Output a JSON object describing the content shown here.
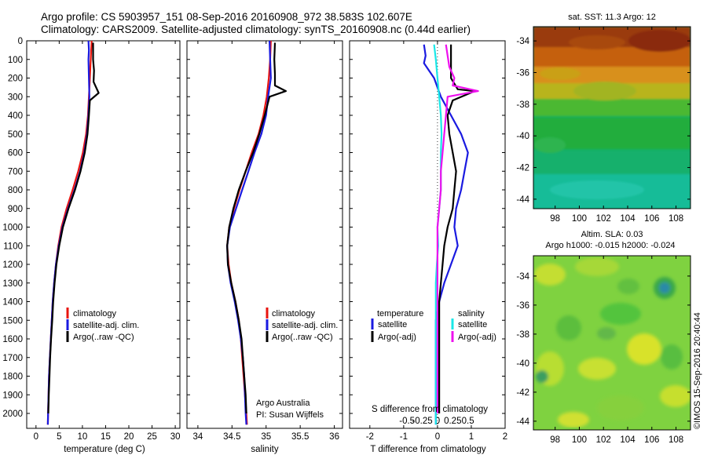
{
  "title_line1": "Argo profile: CS 5903957_151 08-Sep-2016 20160908_972 38.583S 102.607E",
  "title_line2": "Climatology: CARS2009. Satellite-adjusted climatology: synTS_20160908.nc (0.44d earlier)",
  "sst_title": "sat. SST: 11.3 Argo: 12",
  "sla_title1": "Altim. SLA: 0.03",
  "sla_title2": "Argo h1000: -0.015 h2000: -0.024",
  "credit_text": "Argo Australia",
  "pi_text": "PI: Susan Wijffels",
  "stamp": "©IMOS 15-Sep-2016 20:40:44",
  "colors": {
    "climatology": "#e8140f",
    "satellite": "#1a1ae0",
    "argo": "#000000",
    "sat_salinity": "#19e8e8",
    "argo_adj_salinity": "#ee10ee"
  },
  "chart_data": [
    {
      "type": "line",
      "name": "temperature",
      "xlabel": "temperature (deg C)",
      "ylabel": "",
      "xlim": [
        -2,
        31
      ],
      "ylim": [
        2080,
        0
      ],
      "xticks": [
        "0",
        "5",
        "10",
        "15",
        "20",
        "25",
        "30"
      ],
      "yticks": [
        "0",
        "100",
        "200",
        "300",
        "400",
        "500",
        "600",
        "700",
        "800",
        "900",
        "1000",
        "1100",
        "1200",
        "1300",
        "1400",
        "1500",
        "1600",
        "1700",
        "1800",
        "1900",
        "2000"
      ],
      "legend": [
        "climatology",
        "satellite-adj. clim.",
        "Argo(..raw -QC)"
      ],
      "series": [
        {
          "name": "climatology",
          "points": [
            [
              12.0,
              0
            ],
            [
              11.9,
              50
            ],
            [
              11.8,
              100
            ],
            [
              11.6,
              200
            ],
            [
              11.4,
              300
            ],
            [
              11.2,
              400
            ],
            [
              10.8,
              500
            ],
            [
              10.1,
              600
            ],
            [
              9.1,
              700
            ],
            [
              7.9,
              800
            ],
            [
              6.6,
              900
            ],
            [
              5.5,
              1000
            ],
            [
              4.8,
              1100
            ],
            [
              4.3,
              1200
            ],
            [
              3.9,
              1300
            ],
            [
              3.6,
              1400
            ],
            [
              3.4,
              1500
            ],
            [
              3.2,
              1600
            ],
            [
              3.0,
              1700
            ],
            [
              2.8,
              1800
            ],
            [
              2.7,
              1900
            ],
            [
              2.6,
              2000
            ],
            [
              2.55,
              2060
            ]
          ]
        },
        {
          "name": "satellite-adj. clim.",
          "points": [
            [
              11.3,
              0
            ],
            [
              11.4,
              50
            ],
            [
              11.3,
              100
            ],
            [
              11.4,
              200
            ],
            [
              11.5,
              300
            ],
            [
              11.3,
              400
            ],
            [
              11.0,
              500
            ],
            [
              10.4,
              600
            ],
            [
              9.5,
              700
            ],
            [
              8.3,
              800
            ],
            [
              6.9,
              900
            ],
            [
              5.7,
              1000
            ],
            [
              4.9,
              1100
            ],
            [
              4.3,
              1200
            ],
            [
              3.9,
              1300
            ],
            [
              3.6,
              1400
            ],
            [
              3.4,
              1500
            ],
            [
              3.2,
              1600
            ],
            [
              3.0,
              1700
            ],
            [
              2.8,
              1800
            ],
            [
              2.7,
              1900
            ],
            [
              2.6,
              2000
            ],
            [
              2.55,
              2060
            ]
          ]
        },
        {
          "name": "Argo(..raw -QC)",
          "points": [
            [
              12.3,
              10
            ],
            [
              12.3,
              100
            ],
            [
              12.5,
              160
            ],
            [
              12.4,
              220
            ],
            [
              13.5,
              280
            ],
            [
              11.6,
              320
            ],
            [
              11.4,
              400
            ],
            [
              11.1,
              500
            ],
            [
              10.5,
              600
            ],
            [
              9.6,
              700
            ],
            [
              8.4,
              800
            ],
            [
              7.0,
              900
            ],
            [
              5.8,
              1000
            ],
            [
              5.0,
              1100
            ],
            [
              4.4,
              1200
            ],
            [
              4.0,
              1300
            ],
            [
              3.7,
              1400
            ],
            [
              3.5,
              1500
            ],
            [
              3.25,
              1600
            ],
            [
              3.05,
              1700
            ],
            [
              2.9,
              1800
            ],
            [
              2.75,
              1900
            ],
            [
              2.65,
              2000
            ]
          ]
        }
      ]
    },
    {
      "type": "line",
      "name": "salinity",
      "xlabel": "salinity",
      "ylabel": "",
      "xlim": [
        33.84,
        36.12
      ],
      "ylim": [
        2080,
        0
      ],
      "xticks": [
        "34",
        "34.5",
        "35",
        "35.5",
        "36"
      ],
      "legend": [
        "climatology",
        "satellite-adj. clim.",
        "Argo(..raw -QC)"
      ],
      "series": [
        {
          "name": "climatology",
          "points": [
            [
              35.07,
              0
            ],
            [
              35.06,
              100
            ],
            [
              35.04,
              200
            ],
            [
              35.01,
              300
            ],
            [
              34.96,
              400
            ],
            [
              34.89,
              500
            ],
            [
              34.79,
              600
            ],
            [
              34.7,
              700
            ],
            [
              34.61,
              800
            ],
            [
              34.53,
              900
            ],
            [
              34.46,
              1000
            ],
            [
              34.43,
              1100
            ],
            [
              34.45,
              1200
            ],
            [
              34.49,
              1300
            ],
            [
              34.55,
              1400
            ],
            [
              34.6,
              1500
            ],
            [
              34.63,
              1600
            ],
            [
              34.65,
              1700
            ],
            [
              34.67,
              1800
            ],
            [
              34.69,
              1900
            ],
            [
              34.71,
              2000
            ],
            [
              34.72,
              2060
            ]
          ]
        },
        {
          "name": "satellite-adj. clim.",
          "points": [
            [
              35.05,
              0
            ],
            [
              35.06,
              100
            ],
            [
              35.07,
              200
            ],
            [
              35.03,
              300
            ],
            [
              35.0,
              400
            ],
            [
              34.93,
              500
            ],
            [
              34.83,
              600
            ],
            [
              34.74,
              700
            ],
            [
              34.65,
              800
            ],
            [
              34.56,
              900
            ],
            [
              34.47,
              1000
            ],
            [
              34.43,
              1100
            ],
            [
              34.44,
              1200
            ],
            [
              34.48,
              1300
            ],
            [
              34.54,
              1400
            ],
            [
              34.59,
              1500
            ],
            [
              34.63,
              1600
            ],
            [
              34.66,
              1700
            ],
            [
              34.68,
              1800
            ],
            [
              34.69,
              1900
            ],
            [
              34.7,
              2000
            ],
            [
              34.71,
              2060
            ]
          ]
        },
        {
          "name": "Argo(..raw -QC)",
          "points": [
            [
              35.13,
              10
            ],
            [
              35.12,
              100
            ],
            [
              35.13,
              180
            ],
            [
              35.13,
              240
            ],
            [
              35.29,
              270
            ],
            [
              35.05,
              300
            ],
            [
              34.98,
              400
            ],
            [
              34.9,
              500
            ],
            [
              34.81,
              600
            ],
            [
              34.7,
              700
            ],
            [
              34.6,
              800
            ],
            [
              34.52,
              900
            ],
            [
              34.46,
              1000
            ],
            [
              34.43,
              1100
            ],
            [
              34.44,
              1200
            ],
            [
              34.49,
              1300
            ],
            [
              34.55,
              1400
            ],
            [
              34.6,
              1500
            ],
            [
              34.64,
              1600
            ],
            [
              34.66,
              1700
            ],
            [
              34.68,
              1800
            ],
            [
              34.7,
              1900
            ],
            [
              34.71,
              2000
            ]
          ]
        }
      ]
    },
    {
      "type": "line",
      "name": "difference from climatology",
      "xlabel": "T difference from climatology",
      "x2label": "S difference from climatology",
      "ylabel": "",
      "xlim": [
        -2.6,
        2.0
      ],
      "ylim": [
        2080,
        0
      ],
      "xticks": [
        "-2",
        "-1",
        "0",
        "1",
        "2"
      ],
      "x2ticks": [
        "-0.5",
        "-0.25",
        "0",
        "0.25",
        "0.5"
      ],
      "legend_groups": {
        "temperature": [
          "satellite",
          "Argo(-adj)"
        ],
        "salinity": [
          "satellite",
          "Argo(-adj)"
        ]
      },
      "series": [
        {
          "name": "temperature satellite",
          "points": [
            [
              -0.4,
              20
            ],
            [
              -0.35,
              80
            ],
            [
              -0.4,
              120
            ],
            [
              -0.1,
              200
            ],
            [
              0.1,
              300
            ],
            [
              0.4,
              400
            ],
            [
              0.7,
              500
            ],
            [
              0.9,
              600
            ],
            [
              0.8,
              700
            ],
            [
              0.7,
              800
            ],
            [
              0.55,
              900
            ],
            [
              0.5,
              1000
            ],
            [
              0.6,
              1100
            ],
            [
              0.4,
              1200
            ],
            [
              0.2,
              1300
            ],
            [
              0.05,
              1400
            ],
            [
              -0.05,
              1500
            ],
            [
              -0.05,
              1600
            ],
            [
              -0.05,
              1700
            ],
            [
              -0.05,
              1800
            ],
            [
              -0.05,
              1900
            ],
            [
              -0.05,
              2060
            ]
          ]
        },
        {
          "name": "temperature Argo(-adj)",
          "points": [
            [
              0.4,
              20
            ],
            [
              0.4,
              100
            ],
            [
              0.4,
              200
            ],
            [
              0.6,
              260
            ],
            [
              1.1,
              270
            ],
            [
              0.45,
              320
            ],
            [
              0.3,
              400
            ],
            [
              0.35,
              500
            ],
            [
              0.45,
              600
            ],
            [
              0.55,
              700
            ],
            [
              0.5,
              800
            ],
            [
              0.45,
              900
            ],
            [
              0.3,
              1000
            ],
            [
              0.2,
              1100
            ],
            [
              0.15,
              1200
            ],
            [
              0.1,
              1300
            ],
            [
              0.05,
              1400
            ],
            [
              0.05,
              1500
            ],
            [
              0.05,
              1600
            ],
            [
              0.05,
              1700
            ],
            [
              0.05,
              1800
            ],
            [
              0.05,
              1900
            ],
            [
              0.05,
              2000
            ]
          ]
        },
        {
          "name": "salinity satellite",
          "points": [
            [
              -0.1,
              20
            ],
            [
              -0.05,
              100
            ],
            [
              0.0,
              200
            ],
            [
              0.05,
              300
            ],
            [
              0.1,
              400
            ],
            [
              0.12,
              500
            ],
            [
              0.1,
              600
            ],
            [
              0.1,
              700
            ],
            [
              0.1,
              800
            ],
            [
              0.05,
              900
            ],
            [
              0.0,
              1000
            ],
            [
              0.02,
              1100
            ],
            [
              -0.02,
              1200
            ],
            [
              -0.05,
              1300
            ],
            [
              -0.05,
              1400
            ],
            [
              -0.05,
              1500
            ],
            [
              -0.05,
              1600
            ],
            [
              -0.05,
              1700
            ],
            [
              -0.05,
              1800
            ],
            [
              -0.05,
              1900
            ],
            [
              -0.05,
              2060
            ]
          ]
        },
        {
          "name": "salinity Argo(-adj)",
          "points": [
            [
              0.25,
              20
            ],
            [
              0.3,
              80
            ],
            [
              0.35,
              140
            ],
            [
              0.5,
              200
            ],
            [
              0.45,
              240
            ],
            [
              1.2,
              270
            ],
            [
              0.3,
              300
            ],
            [
              0.25,
              400
            ],
            [
              0.2,
              500
            ],
            [
              0.15,
              600
            ],
            [
              0.1,
              700
            ],
            [
              0.1,
              800
            ],
            [
              0.05,
              900
            ],
            [
              0.0,
              1000
            ],
            [
              0.0,
              1100
            ],
            [
              0.0,
              1200
            ],
            [
              0.0,
              1300
            ],
            [
              0.0,
              1400
            ],
            [
              0.0,
              1500
            ],
            [
              0.0,
              1600
            ],
            [
              0.0,
              1700
            ],
            [
              0.0,
              1800
            ],
            [
              0.0,
              1900
            ],
            [
              0.0,
              2000
            ]
          ]
        }
      ]
    },
    {
      "type": "heatmap",
      "name": "satellite SST map",
      "xticks": [
        "98",
        "100",
        "102",
        "104",
        "106",
        "108"
      ],
      "yticks": [
        "-34",
        "-36",
        "-38",
        "-40",
        "-42",
        "-44"
      ],
      "xlim": [
        96.2,
        109.2
      ],
      "ylim": [
        -44.6,
        -33.1
      ],
      "marker": {
        "x": 102.607,
        "y": -38.583
      }
    },
    {
      "type": "heatmap",
      "name": "altimeter SLA map",
      "xticks": [
        "98",
        "100",
        "102",
        "104",
        "106",
        "108"
      ],
      "yticks": [
        "-34",
        "-36",
        "-38",
        "-40",
        "-42",
        "-44"
      ],
      "xlim": [
        96.2,
        109.2
      ],
      "ylim": [
        -44.6,
        -32.6
      ],
      "marker": {
        "x": 102.607,
        "y": -38.583
      }
    }
  ]
}
